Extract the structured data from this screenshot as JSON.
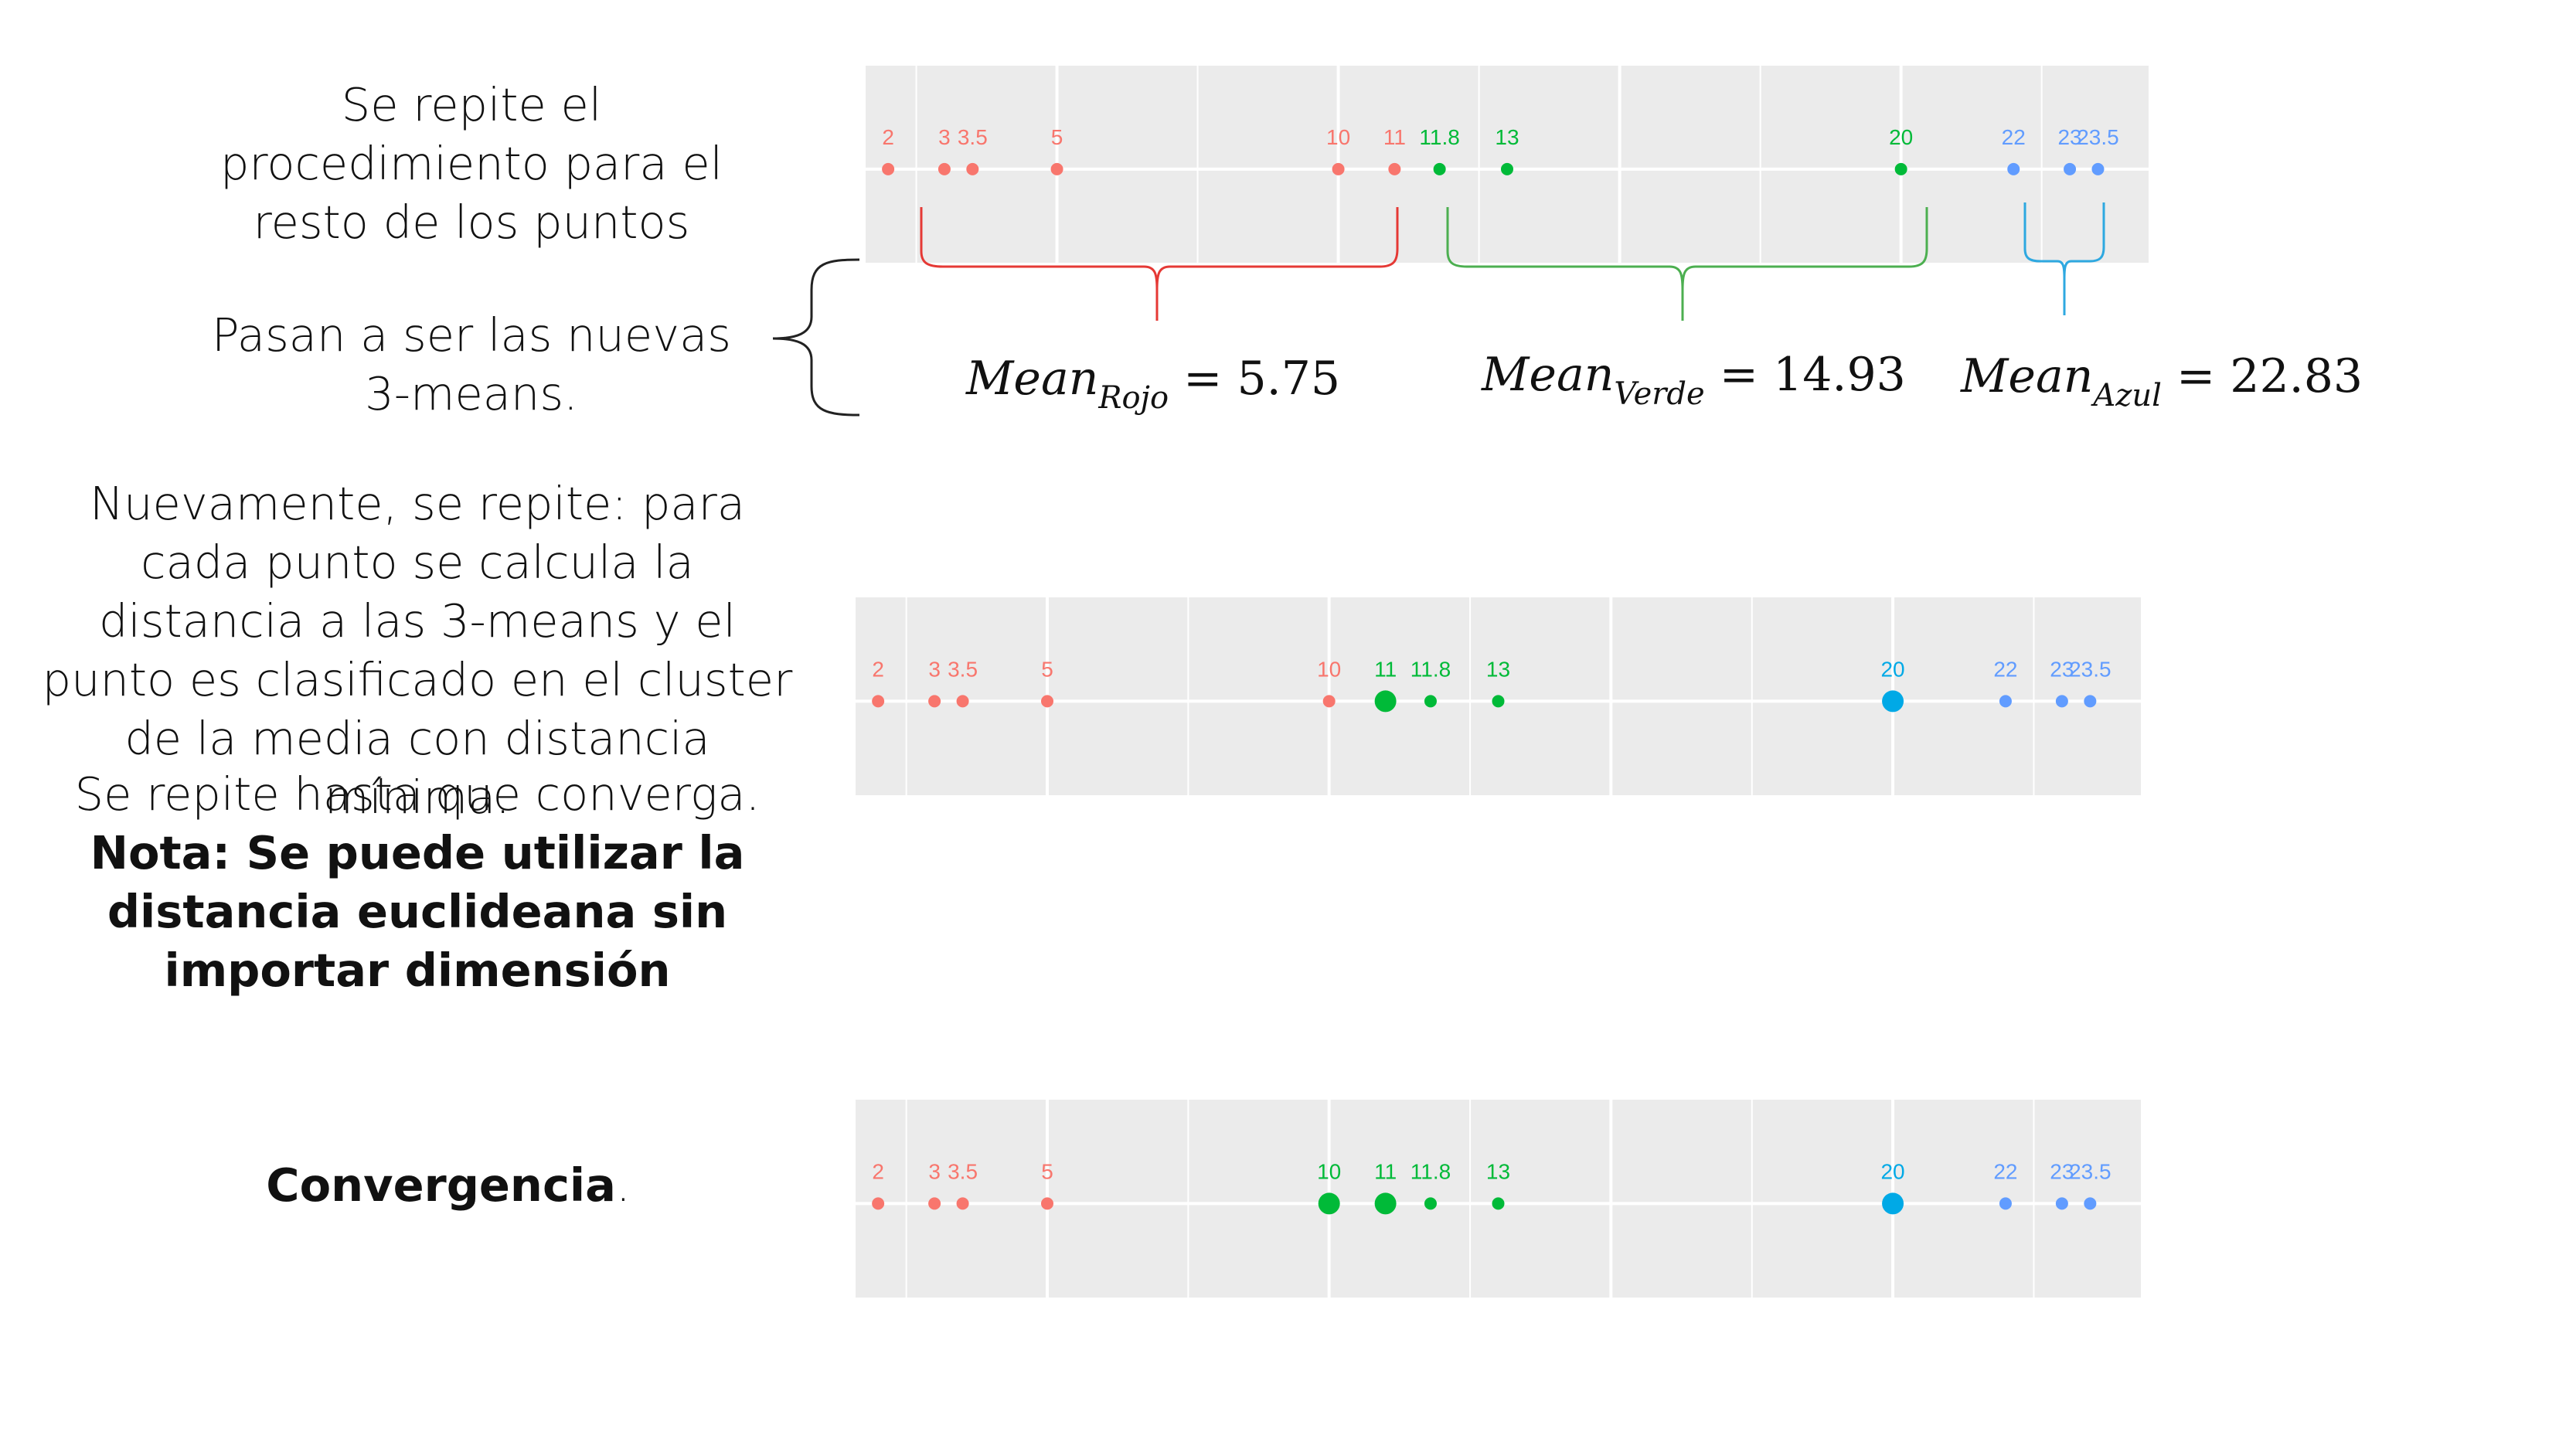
{
  "texts": {
    "intro": "Se repite el procedimiento para el resto de los puntos",
    "new_means": "Pasan a ser las nuevas 3-means.",
    "repeat_1": "Nuevamente, se repite: para cada punto se calcula la distancia a las 3-means y el punto es clasificado en el cluster de la media con distancia mínima.",
    "repeat_2": "Se repite hasta que converga.",
    "note": "Nota: Se puede utilizar la distancia euclideana sin importar dimensión",
    "convergence_bold": "Convergencia",
    "convergence_tail": "."
  },
  "means": [
    {
      "word": "Mean",
      "sub": "Rojo",
      "eq": "= 5.75",
      "color": "#e84c4c"
    },
    {
      "word": "Mean",
      "sub": "Verde",
      "eq": "= 14.93",
      "color": "#33b048"
    },
    {
      "word": "Mean",
      "sub": "Azul",
      "eq": "= 22.83",
      "color": "#2ea8e0"
    }
  ],
  "colors": {
    "red": "#f8766d",
    "green": "#00ba38",
    "blue": "#619cff",
    "cyan": "#00a9e6",
    "panel": "#ebebeb"
  },
  "chart_data": [
    {
      "type": "scatter",
      "points": [
        {
          "x": 2,
          "label": "2",
          "cluster": "red"
        },
        {
          "x": 3,
          "label": "3",
          "cluster": "red"
        },
        {
          "x": 3.5,
          "label": "3.5",
          "cluster": "red"
        },
        {
          "x": 5,
          "label": "5",
          "cluster": "red"
        },
        {
          "x": 10,
          "label": "10",
          "cluster": "red"
        },
        {
          "x": 11,
          "label": "11",
          "cluster": "red"
        },
        {
          "x": 11.8,
          "label": "11.8",
          "cluster": "green"
        },
        {
          "x": 13,
          "label": "13",
          "cluster": "green"
        },
        {
          "x": 20,
          "label": "20",
          "cluster": "green"
        },
        {
          "x": 22,
          "label": "22",
          "cluster": "blue"
        },
        {
          "x": 23,
          "label": "23",
          "cluster": "blue"
        },
        {
          "x": 23.5,
          "label": "23.5",
          "cluster": "blue"
        }
      ],
      "xlim": [
        1.6,
        24.4
      ],
      "grid": true
    },
    {
      "type": "scatter",
      "points": [
        {
          "x": 2,
          "label": "2",
          "cluster": "red"
        },
        {
          "x": 3,
          "label": "3",
          "cluster": "red"
        },
        {
          "x": 3.5,
          "label": "3.5",
          "cluster": "red"
        },
        {
          "x": 5,
          "label": "5",
          "cluster": "red"
        },
        {
          "x": 10,
          "label": "10",
          "cluster": "red"
        },
        {
          "x": 11,
          "label": "11",
          "cluster": "green",
          "highlight": true
        },
        {
          "x": 11.8,
          "label": "11.8",
          "cluster": "green"
        },
        {
          "x": 13,
          "label": "13",
          "cluster": "green"
        },
        {
          "x": 20,
          "label": "20",
          "cluster": "cyan",
          "highlight": true
        },
        {
          "x": 22,
          "label": "22",
          "cluster": "blue"
        },
        {
          "x": 23,
          "label": "23",
          "cluster": "blue"
        },
        {
          "x": 23.5,
          "label": "23.5",
          "cluster": "blue"
        }
      ],
      "xlim": [
        1.6,
        24.4
      ],
      "grid": true
    },
    {
      "type": "scatter",
      "points": [
        {
          "x": 2,
          "label": "2",
          "cluster": "red"
        },
        {
          "x": 3,
          "label": "3",
          "cluster": "red"
        },
        {
          "x": 3.5,
          "label": "3.5",
          "cluster": "red"
        },
        {
          "x": 5,
          "label": "5",
          "cluster": "red"
        },
        {
          "x": 10,
          "label": "10",
          "cluster": "green",
          "highlight": true
        },
        {
          "x": 11,
          "label": "11",
          "cluster": "green",
          "highlight": true
        },
        {
          "x": 11.8,
          "label": "11.8",
          "cluster": "green"
        },
        {
          "x": 13,
          "label": "13",
          "cluster": "green"
        },
        {
          "x": 20,
          "label": "20",
          "cluster": "cyan",
          "highlight": true
        },
        {
          "x": 22,
          "label": "22",
          "cluster": "blue"
        },
        {
          "x": 23,
          "label": "23",
          "cluster": "blue"
        },
        {
          "x": 23.5,
          "label": "23.5",
          "cluster": "blue"
        }
      ],
      "xlim": [
        1.6,
        24.4
      ],
      "grid": true
    }
  ]
}
